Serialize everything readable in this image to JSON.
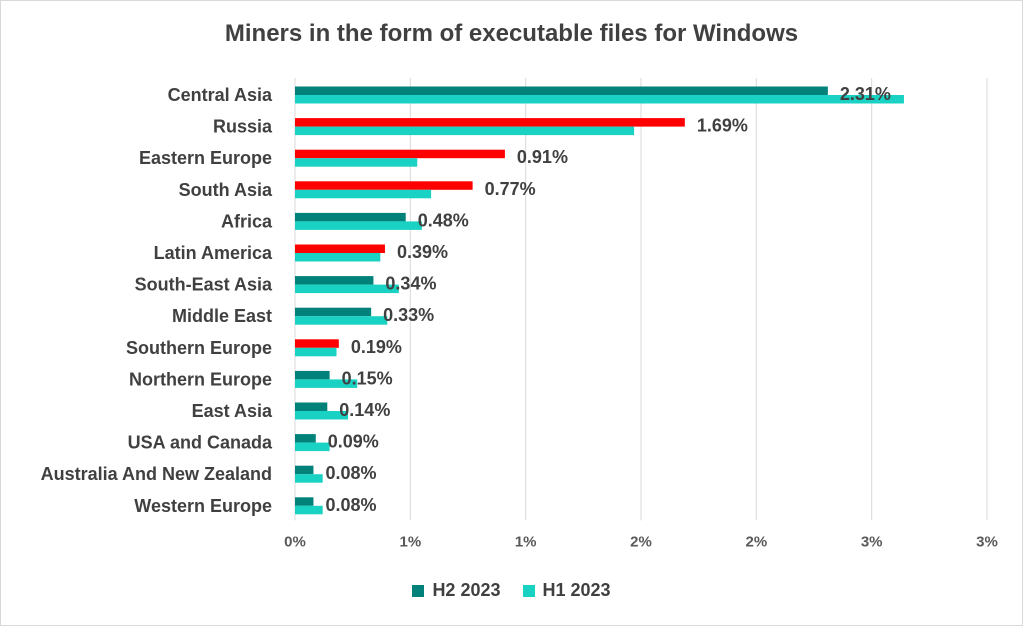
{
  "chart_data": {
    "type": "bar",
    "orientation": "horizontal",
    "title": "Miners in the form of executable files for Windows",
    "categories": [
      "Central Asia",
      "Russia",
      "Eastern Europe",
      "South Asia",
      "Africa",
      "Latin America",
      "South-East Asia",
      "Middle East",
      "Southern Europe",
      "Northern Europe",
      "East Asia",
      "USA and Canada",
      "Australia And New Zealand",
      "Western Europe"
    ],
    "series": [
      {
        "name": "H2 2023",
        "color": "#00827a",
        "values": [
          2.31,
          1.69,
          0.91,
          0.77,
          0.48,
          0.39,
          0.34,
          0.33,
          0.19,
          0.15,
          0.14,
          0.09,
          0.08,
          0.08
        ]
      },
      {
        "name": "H1 2023",
        "color": "#19d2c3",
        "values": [
          2.64,
          1.47,
          0.53,
          0.59,
          0.55,
          0.37,
          0.45,
          0.4,
          0.18,
          0.27,
          0.23,
          0.15,
          0.12,
          0.12
        ]
      }
    ],
    "data_labels": [
      "2.31%",
      "1.69%",
      "0.91%",
      "0.77%",
      "0.48%",
      "0.39%",
      "0.34%",
      "0.33%",
      "0.19%",
      "0.15%",
      "0.14%",
      "0.09%",
      "0.08%",
      "0.08%"
    ],
    "highlight_color": "#ff0000",
    "highlighted_categories": [
      "Russia",
      "Eastern Europe",
      "South Asia",
      "Latin America",
      "Southern Europe"
    ],
    "xlim": [
      0,
      3.0
    ],
    "x_tick_values": [
      0,
      0.5,
      1.0,
      1.5,
      2.0,
      2.5,
      3.0
    ],
    "x_tick_labels": [
      "0%",
      "1%",
      "1%",
      "2%",
      "2%",
      "3%",
      "3%"
    ],
    "xlabel": "",
    "ylabel": "",
    "grid": "vertical",
    "legend_position": "bottom"
  }
}
